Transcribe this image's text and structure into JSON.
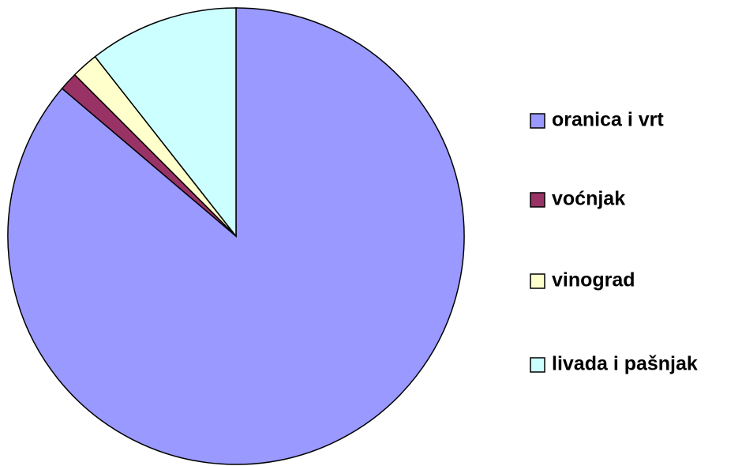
{
  "chart_data": {
    "type": "pie",
    "categories": [
      "oranica i vrt",
      "voćnjak",
      "vinograd",
      "livada i pašnjak"
    ],
    "values": [
      86.2,
      1.3,
      1.9,
      10.6
    ],
    "colors": [
      "#9999ff",
      "#993366",
      "#ffffcc",
      "#ccffff"
    ],
    "legend": "right"
  }
}
